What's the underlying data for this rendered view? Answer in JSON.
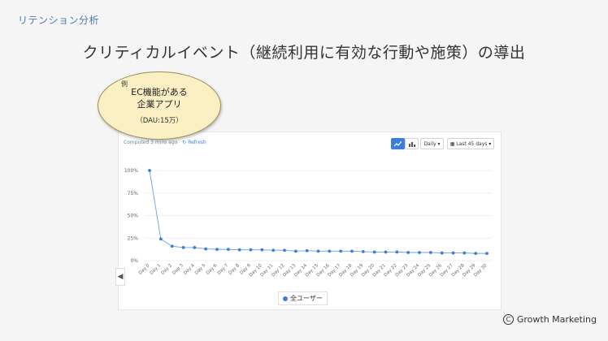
{
  "slide": {
    "label": "リテンション分析",
    "title": "クリティカルイベント（継続利用に有効な行動や施策）の導出"
  },
  "callout": {
    "tag": "例",
    "line1": "EC機能がある",
    "line2": "企業アプリ",
    "line3": "（DAU:15万）"
  },
  "toolbar": {
    "computed": "Computed 3 mins ago",
    "refresh": "Refresh",
    "line_icon": "line-chart-icon",
    "bar_icon": "bar-chart-icon",
    "interval": "Daily",
    "range": "Last 45 days"
  },
  "chart_data": {
    "type": "line",
    "x": [
      "Day 0",
      "Day 1",
      "Day 2",
      "Day 3",
      "Day 4",
      "Day 5",
      "Day 6",
      "Day 7",
      "Day 8",
      "Day 9",
      "Day 10",
      "Day 11",
      "Day 12",
      "Day 13",
      "Day 14",
      "Day 15",
      "Day 16",
      "Day 17",
      "Day 18",
      "Day 19",
      "Day 20",
      "Day 21",
      "Day 22",
      "Day 23",
      "Day 24",
      "Day 25",
      "Day 26",
      "Day 27",
      "Day 28",
      "Day 29",
      "Day 30"
    ],
    "series": [
      {
        "name": "全ユーザー",
        "color": "#3b7dd8",
        "values": [
          100,
          24,
          16,
          14.5,
          14.5,
          13,
          12.5,
          12.5,
          12,
          12,
          12,
          11.5,
          11.5,
          10.5,
          11,
          10.5,
          10.5,
          10.5,
          10.5,
          10,
          9.5,
          9.5,
          9.5,
          9,
          9,
          9,
          8.5,
          8.5,
          8.5,
          8,
          8
        ]
      }
    ],
    "yticks": [
      "100%",
      "75%",
      "50%",
      "25%",
      "0%"
    ],
    "ylim": [
      0,
      100
    ],
    "grid": true,
    "legend": "bottom-center"
  },
  "footer": {
    "copyright_symbol": "C",
    "copyright": "Growth Marketing"
  }
}
